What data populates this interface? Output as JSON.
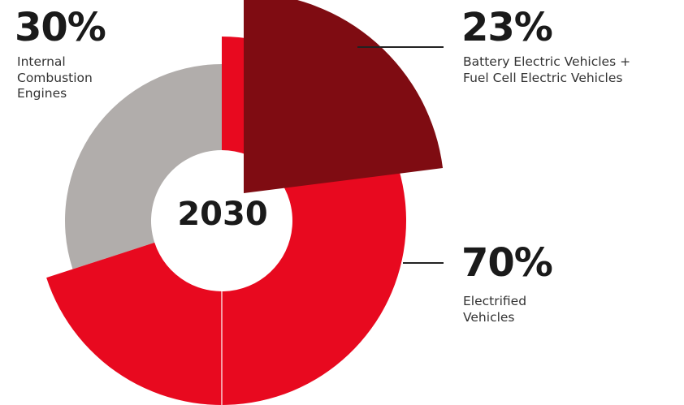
{
  "chart_data": {
    "type": "pie",
    "center_label": "2030",
    "colors": {
      "electrified": "#e8091f",
      "bev_fcev": "#7f0c12",
      "ice": "#b1adab",
      "text": "#1a1a1a",
      "leader": "#222222"
    },
    "slices": [
      {
        "key": "ice",
        "value": 30,
        "percent_label": "30%",
        "label_lines": [
          "Internal",
          "Combustion",
          "Engines"
        ]
      },
      {
        "key": "electrified",
        "value": 70,
        "percent_label": "70%",
        "label_lines": [
          "Electrified",
          "Vehicles"
        ]
      },
      {
        "key": "bev_fcev",
        "value": 23,
        "percent_label": "23%",
        "label_lines": [
          "Battery Electric Vehicles +",
          "Fuel Cell Electric Vehicles"
        ],
        "subset_of": "electrified"
      }
    ]
  }
}
